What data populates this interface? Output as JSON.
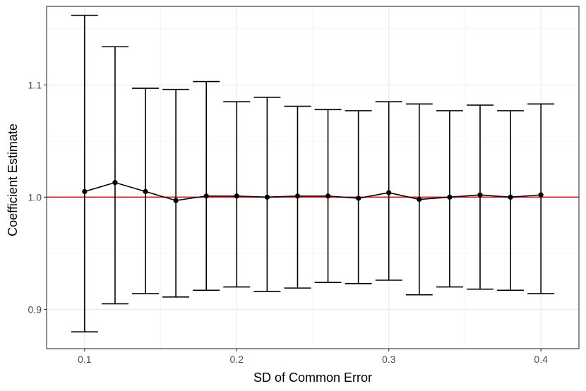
{
  "chart_data": {
    "type": "errorbar",
    "xlabel": "SD of Common Error",
    "ylabel": "Coefficient Estimate",
    "xlim": [
      0.075,
      0.425
    ],
    "ylim": [
      0.865,
      1.17
    ],
    "x_ticks": [
      0.1,
      0.2,
      0.3,
      0.4
    ],
    "x_tick_labels": [
      "0.1",
      "0.2",
      "0.3",
      "0.4"
    ],
    "y_ticks": [
      0.9,
      1.0,
      1.1
    ],
    "y_tick_labels": [
      "0.9",
      "1.0",
      "1.1"
    ],
    "reference_line": {
      "y": 1.0,
      "color": "#e31a1c"
    },
    "grid": true,
    "points": [
      {
        "x": 0.1,
        "y": 1.005,
        "lower": 0.88,
        "upper": 1.162
      },
      {
        "x": 0.12,
        "y": 1.013,
        "lower": 0.905,
        "upper": 1.134
      },
      {
        "x": 0.14,
        "y": 1.005,
        "lower": 0.914,
        "upper": 1.097
      },
      {
        "x": 0.16,
        "y": 0.997,
        "lower": 0.911,
        "upper": 1.096
      },
      {
        "x": 0.18,
        "y": 1.001,
        "lower": 0.917,
        "upper": 1.103
      },
      {
        "x": 0.2,
        "y": 1.001,
        "lower": 0.92,
        "upper": 1.085
      },
      {
        "x": 0.22,
        "y": 1.0,
        "lower": 0.916,
        "upper": 1.089
      },
      {
        "x": 0.24,
        "y": 1.001,
        "lower": 0.919,
        "upper": 1.081
      },
      {
        "x": 0.26,
        "y": 1.001,
        "lower": 0.924,
        "upper": 1.078
      },
      {
        "x": 0.28,
        "y": 0.999,
        "lower": 0.923,
        "upper": 1.077
      },
      {
        "x": 0.3,
        "y": 1.004,
        "lower": 0.926,
        "upper": 1.085
      },
      {
        "x": 0.32,
        "y": 0.998,
        "lower": 0.913,
        "upper": 1.083
      },
      {
        "x": 0.34,
        "y": 1.0,
        "lower": 0.92,
        "upper": 1.077
      },
      {
        "x": 0.36,
        "y": 1.002,
        "lower": 0.918,
        "upper": 1.082
      },
      {
        "x": 0.38,
        "y": 1.0,
        "lower": 0.917,
        "upper": 1.077
      },
      {
        "x": 0.4,
        "y": 1.002,
        "lower": 0.914,
        "upper": 1.083
      }
    ],
    "colors": {
      "series": "#000000",
      "reference": "#e31a1c",
      "grid_major": "#ebebeb",
      "grid_minor": "#f5f5f5",
      "panel_border": "#333333"
    }
  }
}
